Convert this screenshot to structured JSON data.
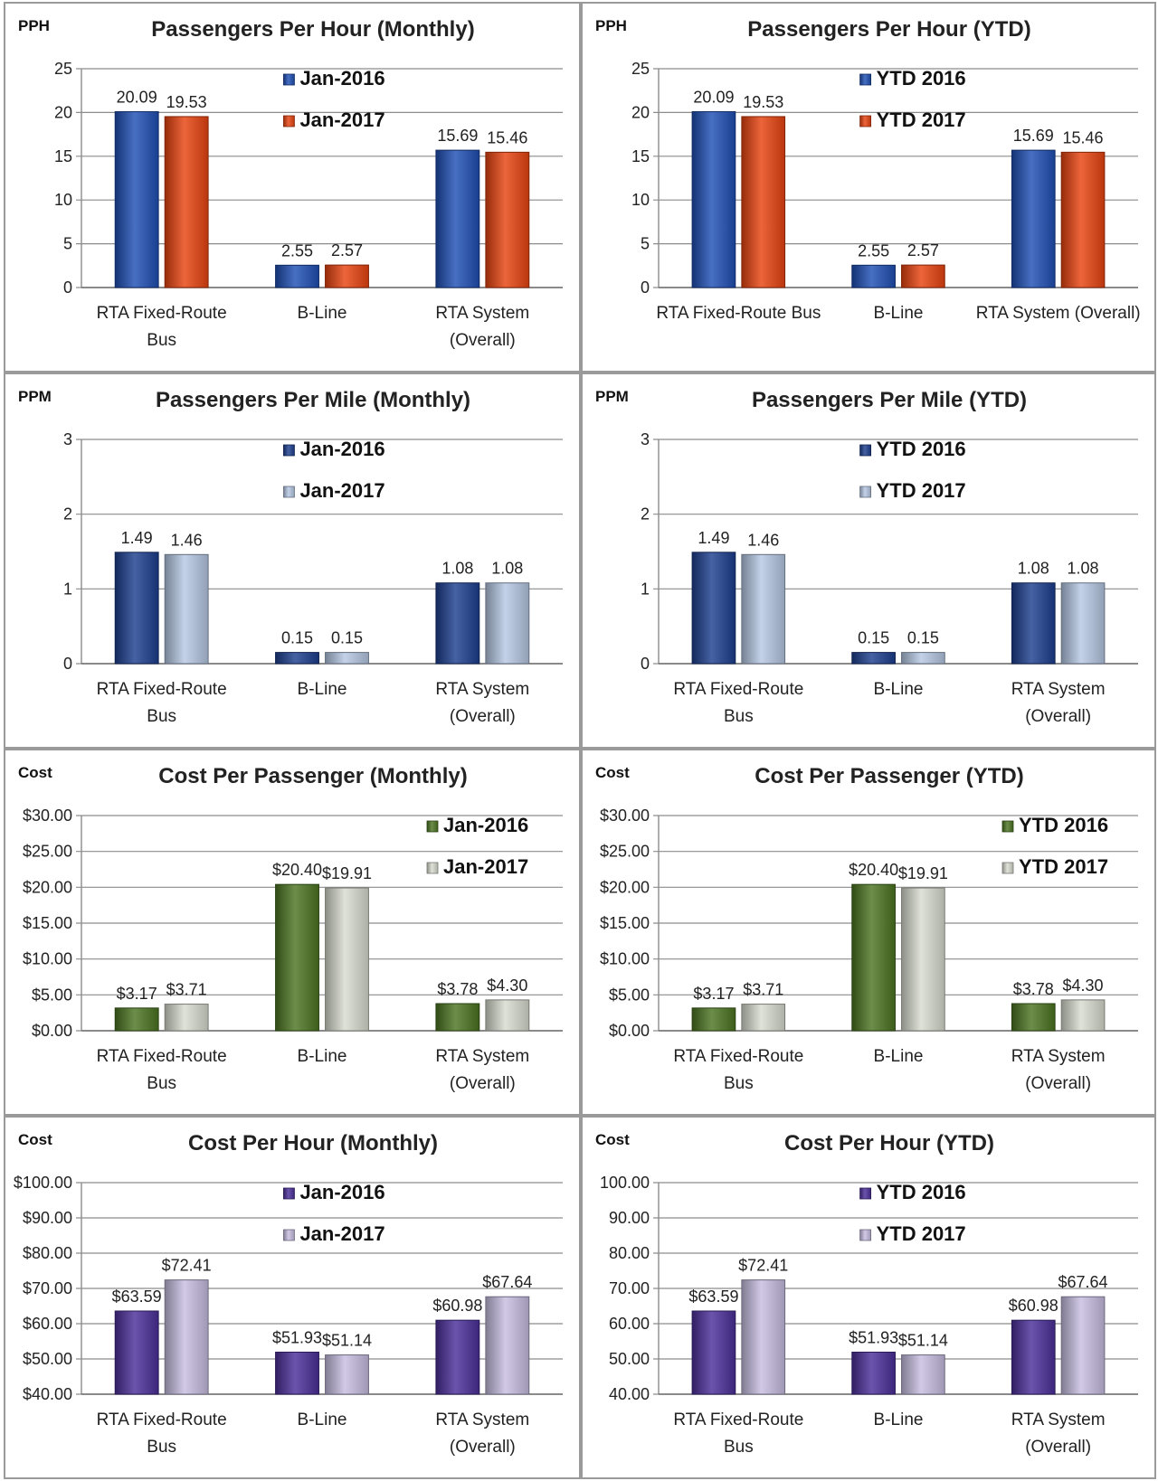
{
  "colors": {
    "blue": "#1f4fb4",
    "orange": "#e84310",
    "navy": "#1d3f8f",
    "lightblue": "#b6c8e4",
    "green": "#4c7522",
    "lightgray": "#d8dccf",
    "purple": "#4b2f9a",
    "lavender": "#c7bde0"
  },
  "panels": [
    {
      "unit": "PPH",
      "chart_data": {
        "type": "bar",
        "title": "Passengers Per Hour (Monthly)",
        "categories": [
          [
            "RTA Fixed-Route",
            "Bus"
          ],
          [
            "B-Line"
          ],
          [
            "RTA System",
            "(Overall)"
          ]
        ],
        "series": [
          {
            "name": "Jan-2016",
            "values": [
              20.09,
              2.55,
              15.69
            ],
            "labels": [
              "20.09",
              "2.55",
              "15.69"
            ],
            "color": "blue"
          },
          {
            "name": "Jan-2017",
            "values": [
              19.53,
              2.57,
              15.46
            ],
            "labels": [
              "19.53",
              "2.57",
              "15.46"
            ],
            "color": "orange"
          }
        ],
        "ylim": [
          0,
          25
        ],
        "yticks": [
          "0",
          "5",
          "10",
          "15",
          "20",
          "25"
        ],
        "grid": true,
        "legend": "top-center"
      }
    },
    {
      "unit": "PPH",
      "chart_data": {
        "type": "bar",
        "title": "Passengers Per Hour (YTD)",
        "categories": [
          [
            "RTA Fixed-Route Bus"
          ],
          [
            "B-Line"
          ],
          [
            "RTA System (Overall)"
          ]
        ],
        "series": [
          {
            "name": "YTD 2016",
            "values": [
              20.09,
              2.55,
              15.69
            ],
            "labels": [
              "20.09",
              "2.55",
              "15.69"
            ],
            "color": "blue"
          },
          {
            "name": "YTD 2017",
            "values": [
              19.53,
              2.57,
              15.46
            ],
            "labels": [
              "19.53",
              "2.57",
              "15.46"
            ],
            "color": "orange"
          }
        ],
        "ylim": [
          0,
          25
        ],
        "yticks": [
          "0",
          "5",
          "10",
          "15",
          "20",
          "25"
        ],
        "grid": true,
        "legend": "top-center"
      }
    },
    {
      "unit": "PPM",
      "chart_data": {
        "type": "bar",
        "title": "Passengers Per Mile (Monthly)",
        "categories": [
          [
            "RTA Fixed-Route",
            "Bus"
          ],
          [
            "B-Line"
          ],
          [
            "RTA System",
            "(Overall)"
          ]
        ],
        "series": [
          {
            "name": "Jan-2016",
            "values": [
              1.49,
              0.15,
              1.08
            ],
            "labels": [
              "1.49",
              "0.15",
              "1.08"
            ],
            "color": "navy"
          },
          {
            "name": "Jan-2017",
            "values": [
              1.46,
              0.15,
              1.08
            ],
            "labels": [
              "1.46",
              "0.15",
              "1.08"
            ],
            "color": "lightblue"
          }
        ],
        "ylim": [
          0,
          3
        ],
        "yticks": [
          "0",
          "1",
          "2",
          "3"
        ],
        "grid": true,
        "legend": "top-center"
      }
    },
    {
      "unit": "PPM",
      "chart_data": {
        "type": "bar",
        "title": "Passengers Per Mile (YTD)",
        "categories": [
          [
            "RTA Fixed-Route",
            "Bus"
          ],
          [
            "B-Line"
          ],
          [
            "RTA System",
            "(Overall)"
          ]
        ],
        "series": [
          {
            "name": "YTD 2016",
            "values": [
              1.49,
              0.15,
              1.08
            ],
            "labels": [
              "1.49",
              "0.15",
              "1.08"
            ],
            "color": "navy"
          },
          {
            "name": "YTD 2017",
            "values": [
              1.46,
              0.15,
              1.08
            ],
            "labels": [
              "1.46",
              "0.15",
              "1.08"
            ],
            "color": "lightblue"
          }
        ],
        "ylim": [
          0,
          3
        ],
        "yticks": [
          "0",
          "1",
          "2",
          "3"
        ],
        "grid": true,
        "legend": "top-center"
      }
    },
    {
      "unit": "Cost",
      "chart_data": {
        "type": "bar",
        "title": "Cost Per Passenger (Monthly)",
        "categories": [
          [
            "RTA Fixed-Route",
            "Bus"
          ],
          [
            "B-Line"
          ],
          [
            "RTA System",
            "(Overall)"
          ]
        ],
        "series": [
          {
            "name": "Jan-2016",
            "values": [
              3.17,
              20.4,
              3.78
            ],
            "labels": [
              "$3.17",
              "$20.40",
              "$3.78"
            ],
            "color": "green"
          },
          {
            "name": "Jan-2017",
            "values": [
              3.71,
              19.91,
              4.3
            ],
            "labels": [
              "$3.71",
              "$19.91",
              "$4.30"
            ],
            "color": "lightgray"
          }
        ],
        "ylim": [
          0,
          30
        ],
        "yticks": [
          "$0.00",
          "$5.00",
          "$10.00",
          "$15.00",
          "$20.00",
          "$25.00",
          "$30.00"
        ],
        "grid": true,
        "legend": "top-right"
      }
    },
    {
      "unit": "Cost",
      "chart_data": {
        "type": "bar",
        "title": "Cost Per Passenger (YTD)",
        "categories": [
          [
            "RTA Fixed-Route",
            "Bus"
          ],
          [
            "B-Line"
          ],
          [
            "RTA System",
            "(Overall)"
          ]
        ],
        "series": [
          {
            "name": "YTD 2016",
            "values": [
              3.17,
              20.4,
              3.78
            ],
            "labels": [
              "$3.17",
              "$20.40",
              "$3.78"
            ],
            "color": "green"
          },
          {
            "name": "YTD 2017",
            "values": [
              3.71,
              19.91,
              4.3
            ],
            "labels": [
              "$3.71",
              "$19.91",
              "$4.30"
            ],
            "color": "lightgray"
          }
        ],
        "ylim": [
          0,
          30
        ],
        "yticks": [
          "$0.00",
          "$5.00",
          "$10.00",
          "$15.00",
          "$20.00",
          "$25.00",
          "$30.00"
        ],
        "grid": true,
        "legend": "top-right"
      }
    },
    {
      "unit": "Cost",
      "chart_data": {
        "type": "bar",
        "title": "Cost Per Hour (Monthly)",
        "categories": [
          [
            "RTA Fixed-Route",
            "Bus"
          ],
          [
            "B-Line"
          ],
          [
            "RTA System",
            "(Overall)"
          ]
        ],
        "series": [
          {
            "name": "Jan-2016",
            "values": [
              63.59,
              51.93,
              60.98
            ],
            "labels": [
              "$63.59",
              "$51.93",
              "$60.98"
            ],
            "color": "purple"
          },
          {
            "name": "Jan-2017",
            "values": [
              72.41,
              51.14,
              67.64
            ],
            "labels": [
              "$72.41",
              "$51.14",
              "$67.64"
            ],
            "color": "lavender"
          }
        ],
        "ylim": [
          40,
          100
        ],
        "yticks": [
          "$40.00",
          "$50.00",
          "$60.00",
          "$70.00",
          "$80.00",
          "$90.00",
          "$100.00"
        ],
        "grid": true,
        "legend": "top-center"
      }
    },
    {
      "unit": "Cost",
      "chart_data": {
        "type": "bar",
        "title": "Cost Per Hour (YTD)",
        "categories": [
          [
            "RTA Fixed-Route",
            "Bus"
          ],
          [
            "B-Line"
          ],
          [
            "RTA System",
            "(Overall)"
          ]
        ],
        "series": [
          {
            "name": "YTD 2016",
            "values": [
              63.59,
              51.93,
              60.98
            ],
            "labels": [
              "$63.59",
              "$51.93",
              "$60.98"
            ],
            "color": "purple"
          },
          {
            "name": "YTD 2017",
            "values": [
              72.41,
              51.14,
              67.64
            ],
            "labels": [
              "$72.41",
              "$51.14",
              "$67.64"
            ],
            "color": "lavender"
          }
        ],
        "ylim": [
          40,
          100
        ],
        "yticks": [
          "40.00",
          "50.00",
          "60.00",
          "70.00",
          "80.00",
          "90.00",
          "100.00"
        ],
        "grid": true,
        "legend": "top-center"
      }
    }
  ]
}
